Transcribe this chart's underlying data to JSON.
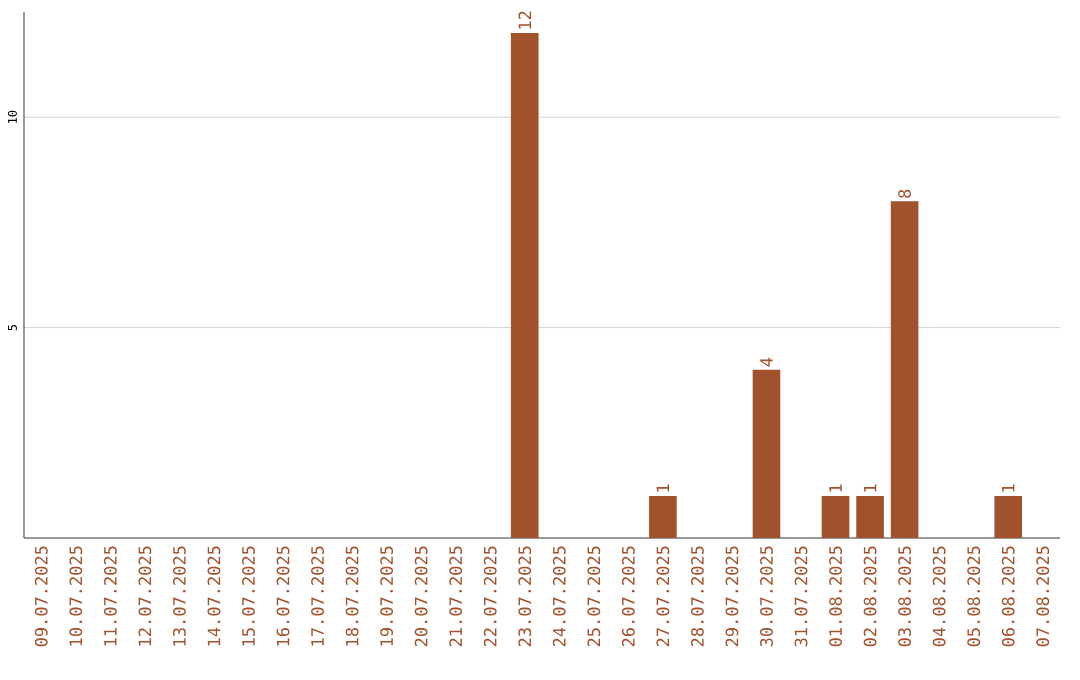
{
  "chart_data": {
    "type": "bar",
    "categories": [
      "09.07.2025",
      "10.07.2025",
      "11.07.2025",
      "12.07.2025",
      "13.07.2025",
      "14.07.2025",
      "15.07.2025",
      "16.07.2025",
      "17.07.2025",
      "18.07.2025",
      "19.07.2025",
      "20.07.2025",
      "21.07.2025",
      "22.07.2025",
      "23.07.2025",
      "24.07.2025",
      "25.07.2025",
      "26.07.2025",
      "27.07.2025",
      "28.07.2025",
      "29.07.2025",
      "30.07.2025",
      "31.07.2025",
      "01.08.2025",
      "02.08.2025",
      "03.08.2025",
      "04.08.2025",
      "05.08.2025",
      "06.08.2025",
      "07.08.2025"
    ],
    "values": [
      0,
      0,
      0,
      0,
      0,
      0,
      0,
      0,
      0,
      0,
      0,
      0,
      0,
      0,
      12,
      0,
      0,
      0,
      1,
      0,
      0,
      4,
      0,
      1,
      1,
      8,
      0,
      0,
      1,
      0
    ],
    "value_labels": [
      null,
      null,
      null,
      null,
      null,
      null,
      null,
      null,
      null,
      null,
      null,
      null,
      null,
      null,
      "12",
      null,
      null,
      null,
      "1",
      null,
      null,
      "4",
      null,
      "1",
      "1",
      "8",
      null,
      null,
      "1",
      null
    ],
    "color": "#a0522d",
    "ylim": [
      0,
      12.5
    ],
    "yticks": [
      5,
      10
    ],
    "grid": "y"
  }
}
